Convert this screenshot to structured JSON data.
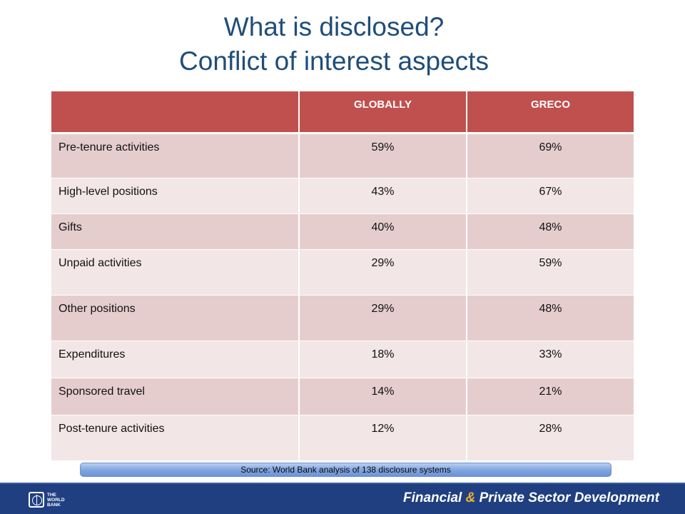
{
  "slide": {
    "title_line1": "What is disclosed?",
    "title_line2": "Conflict of interest aspects"
  },
  "table": {
    "headers": [
      "",
      "GLOBALLY",
      "GRECO"
    ],
    "rows": [
      {
        "aspect": "Pre-tenure  activities",
        "globally": "59%",
        "greco": "69%"
      },
      {
        "aspect": "High-level positions",
        "globally": "43%",
        "greco": "67%"
      },
      {
        "aspect": "Gifts",
        "globally": "40%",
        "greco": "48%"
      },
      {
        "aspect": "Unpaid activities",
        "globally": "29%",
        "greco": "59%"
      },
      {
        "aspect": "Other positions",
        "globally": "29%",
        "greco": "48%"
      },
      {
        "aspect": "Expenditures",
        "globally": "18%",
        "greco": "33%"
      },
      {
        "aspect": "Sponsored  travel",
        "globally": "14%",
        "greco": "21%"
      },
      {
        "aspect": "Post-tenure activities",
        "globally": "12%",
        "greco": "28%"
      }
    ],
    "colors": {
      "header": "#c0504d",
      "row_dark": "#e6cdcd",
      "row_light": "#f2e6e6"
    }
  },
  "source": {
    "text": "Source: World Bank analysis of 138  disclosure systems"
  },
  "footer": {
    "logo_line1": "THE",
    "logo_line2": "WORLD",
    "logo_line3": "BANK",
    "logo_icon": "world-bank-globe-icon",
    "department_part1": "Financial ",
    "department_amp": "&",
    "department_part2": " Private Sector Development",
    "color": "#1f3f80"
  }
}
